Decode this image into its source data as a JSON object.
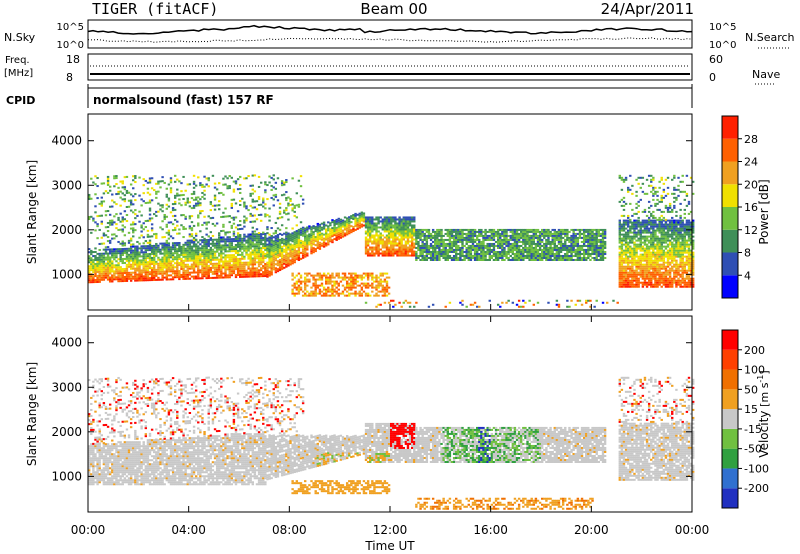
{
  "header": {
    "radar": "TIGER (fitACF)",
    "beam": "Beam 00",
    "date": "24/Apr/2011"
  },
  "summary_panels": {
    "nsky_label": "N.Sky",
    "nsky_ticks": [
      "10^5",
      "10^0"
    ],
    "nsearch_label": "N.Search",
    "nsearch_ticks": [
      "10^5",
      "10^0"
    ],
    "freq_label_1": "Freq.",
    "freq_label_2": "[MHz]",
    "freq_ticks": [
      "18",
      "8"
    ],
    "nave_label": "Nave",
    "nave_ticks": [
      "60",
      "0"
    ],
    "cpid_label": "CPID",
    "cpid_text": "normalsound (fast) 157 RF"
  },
  "chart_data": [
    {
      "type": "heatmap",
      "name": "power",
      "ylabel": "Slant Range [km]",
      "y_ticks": [
        "1000",
        "2000",
        "3000",
        "4000"
      ],
      "y_tick_values": [
        1000,
        2000,
        3000,
        4000
      ],
      "ylim": [
        200,
        4600
      ],
      "x_ticks": [
        "00:00",
        "04:00",
        "08:00",
        "12:00",
        "16:00",
        "20:00",
        "00:00"
      ],
      "x_tick_values": [
        0,
        4,
        8,
        12,
        16,
        20,
        24
      ],
      "xlim": [
        0,
        24
      ],
      "colorbar": {
        "label": "Power [dB]",
        "ticks": [
          "4",
          "8",
          "12",
          "16",
          "20",
          "24",
          "28"
        ],
        "tick_values": [
          4,
          8,
          12,
          16,
          20,
          24,
          28
        ],
        "range": [
          0,
          32
        ],
        "colors": [
          "#0000ff",
          "#2f4fb4",
          "#3f8f58",
          "#70c040",
          "#f0e000",
          "#f0a020",
          "#ff6000",
          "#ff2000"
        ]
      }
    },
    {
      "type": "heatmap",
      "name": "velocity",
      "ylabel": "Slant Range [km]",
      "y_ticks": [
        "1000",
        "2000",
        "3000",
        "4000"
      ],
      "y_tick_values": [
        1000,
        2000,
        3000,
        4000
      ],
      "ylim": [
        200,
        4600
      ],
      "x_ticks": [
        "00:00",
        "04:00",
        "08:00",
        "12:00",
        "16:00",
        "20:00",
        "00:00"
      ],
      "x_tick_values": [
        0,
        4,
        8,
        12,
        16,
        20,
        24
      ],
      "xlim": [
        0,
        24
      ],
      "xlabel": "Time UT",
      "colorbar": {
        "label_main": "Velocity",
        "label_units": "[m s",
        "label_exp": "-1",
        "label_close": "]",
        "ticks": [
          "200",
          "100",
          "50",
          "15",
          "-15",
          "-50",
          "-100",
          "-200"
        ],
        "tick_values": [
          200,
          100,
          50,
          15,
          -15,
          -50,
          -100,
          -200
        ],
        "colors": [
          "#2030c0",
          "#3070d0",
          "#30a040",
          "#70c040",
          "#c8c8c8",
          "#f0a020",
          "#f07000",
          "#ff4000",
          "#ff0000"
        ]
      }
    }
  ]
}
